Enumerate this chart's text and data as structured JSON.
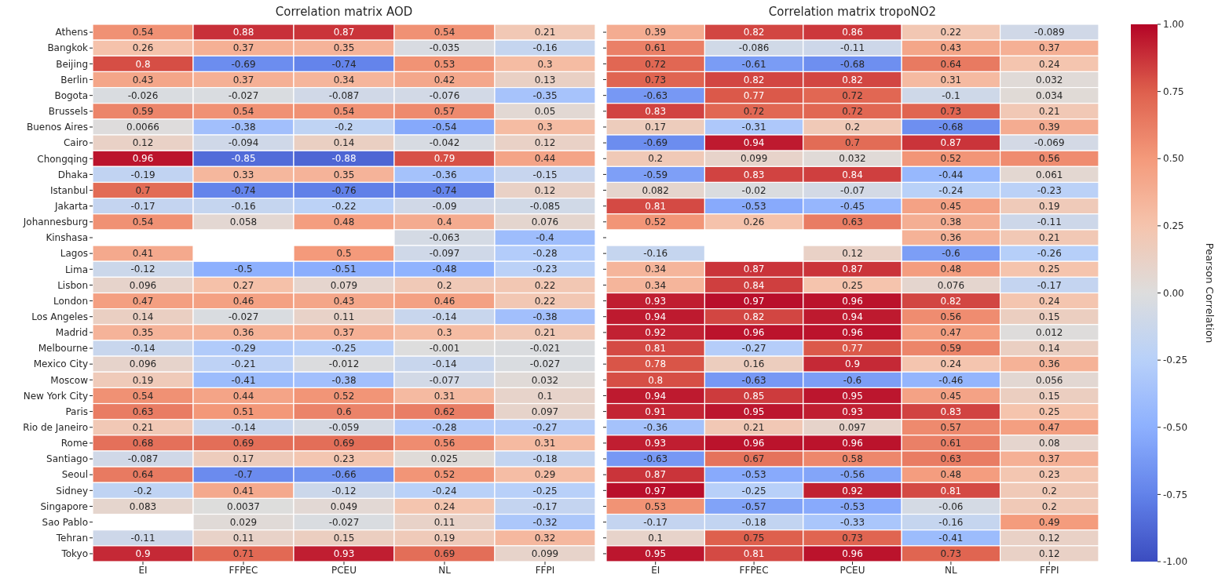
{
  "chart_data": [
    {
      "type": "heatmap",
      "title": "Correlation matrix AOD",
      "categories": [
        "EI",
        "FFPEC",
        "PCEU",
        "NL",
        "FFPI"
      ],
      "y_categories": [
        "Athens",
        "Bangkok",
        "Beijing",
        "Berlin",
        "Bogota",
        "Brussels",
        "Buenos Aires",
        "Cairo",
        "Chongqing",
        "Dhaka",
        "Istanbul",
        "Jakarta",
        "Johannesburg",
        "Kinshasa",
        "Lagos",
        "Lima",
        "Lisbon",
        "London",
        "Los Angeles",
        "Madrid",
        "Melbourne",
        "Mexico City",
        "Moscow",
        "New York City",
        "Paris",
        "Rio de Janeiro",
        "Rome",
        "Santiago",
        "Seoul",
        "Sidney",
        "Singapore",
        "Sao Pablo",
        "Tehran",
        "Tokyo"
      ],
      "cells": [
        [
          0.54,
          0.88,
          0.87,
          0.54,
          0.21
        ],
        [
          0.26,
          0.37,
          0.35,
          -0.035,
          -0.16
        ],
        [
          0.8,
          -0.69,
          -0.74,
          0.53,
          0.3
        ],
        [
          0.43,
          0.37,
          0.34,
          0.42,
          0.13
        ],
        [
          -0.026,
          -0.027,
          -0.087,
          -0.076,
          -0.35
        ],
        [
          0.59,
          0.54,
          0.54,
          0.57,
          0.05
        ],
        [
          0.0066,
          -0.38,
          -0.2,
          -0.54,
          0.3
        ],
        [
          0.12,
          -0.094,
          0.14,
          -0.042,
          0.12
        ],
        [
          0.96,
          -0.85,
          -0.88,
          0.79,
          0.44
        ],
        [
          -0.19,
          0.33,
          0.35,
          -0.36,
          -0.15
        ],
        [
          0.7,
          -0.74,
          -0.76,
          -0.74,
          0.12
        ],
        [
          -0.17,
          -0.16,
          -0.22,
          -0.09,
          -0.085
        ],
        [
          0.54,
          0.058,
          0.48,
          0.4,
          0.076
        ],
        [
          null,
          null,
          null,
          -0.063,
          -0.4
        ],
        [
          0.41,
          null,
          0.5,
          -0.097,
          -0.28
        ],
        [
          -0.12,
          -0.5,
          -0.51,
          -0.48,
          -0.23
        ],
        [
          0.096,
          0.27,
          0.079,
          0.2,
          0.22
        ],
        [
          0.47,
          0.46,
          0.43,
          0.46,
          0.22
        ],
        [
          0.14,
          -0.027,
          0.11,
          -0.14,
          -0.38
        ],
        [
          0.35,
          0.36,
          0.37,
          0.3,
          0.21
        ],
        [
          -0.14,
          -0.29,
          -0.25,
          -0.001,
          -0.021
        ],
        [
          0.096,
          -0.21,
          -0.012,
          -0.14,
          -0.027
        ],
        [
          0.19,
          -0.41,
          -0.38,
          -0.077,
          0.032
        ],
        [
          0.54,
          0.44,
          0.52,
          0.31,
          0.1
        ],
        [
          0.63,
          0.51,
          0.6,
          0.62,
          0.097
        ],
        [
          0.21,
          -0.14,
          -0.059,
          -0.28,
          -0.27
        ],
        [
          0.68,
          0.69,
          0.69,
          0.56,
          0.31
        ],
        [
          -0.087,
          0.17,
          0.23,
          0.025,
          -0.18
        ],
        [
          0.64,
          -0.7,
          -0.66,
          0.52,
          0.29
        ],
        [
          -0.2,
          0.41,
          -0.12,
          -0.24,
          -0.25
        ],
        [
          0.083,
          0.0037,
          0.049,
          0.24,
          -0.17
        ],
        [
          null,
          0.029,
          -0.027,
          0.11,
          -0.32
        ],
        [
          -0.11,
          0.11,
          0.15,
          0.19,
          0.32
        ],
        [
          0.9,
          0.71,
          0.93,
          0.69,
          0.099
        ]
      ],
      "data_labels": true
    },
    {
      "type": "heatmap",
      "title": "Correlation matrix tropoNO2",
      "categories": [
        "EI",
        "FFPEC",
        "PCEU",
        "NL",
        "FFPI"
      ],
      "y_categories": [
        null,
        null,
        null,
        null,
        null,
        null,
        null,
        null,
        null,
        null,
        null,
        null,
        null,
        null,
        null,
        null,
        null,
        null,
        null,
        null,
        null,
        null,
        null,
        null,
        null,
        null,
        null,
        null,
        null,
        null,
        null,
        null,
        null,
        null
      ],
      "cells": [
        [
          0.39,
          0.82,
          0.86,
          0.22,
          -0.089
        ],
        [
          0.61,
          -0.086,
          -0.11,
          0.43,
          0.37
        ],
        [
          0.72,
          -0.61,
          -0.68,
          0.64,
          0.24
        ],
        [
          0.73,
          0.82,
          0.82,
          0.31,
          0.032
        ],
        [
          -0.63,
          0.77,
          0.72,
          -0.1,
          0.034
        ],
        [
          0.83,
          0.72,
          0.72,
          0.73,
          0.21
        ],
        [
          0.17,
          -0.31,
          0.2,
          -0.68,
          0.39
        ],
        [
          -0.69,
          0.94,
          0.7,
          0.87,
          -0.069
        ],
        [
          0.2,
          0.099,
          0.032,
          0.52,
          0.56
        ],
        [
          -0.59,
          0.83,
          0.84,
          -0.44,
          0.061
        ],
        [
          0.082,
          -0.02,
          -0.07,
          -0.24,
          -0.23
        ],
        [
          0.81,
          -0.53,
          -0.45,
          0.45,
          0.19
        ],
        [
          0.52,
          0.26,
          0.63,
          0.38,
          -0.11
        ],
        [
          null,
          null,
          null,
          0.36,
          0.21
        ],
        [
          -0.16,
          null,
          0.12,
          -0.6,
          -0.26
        ],
        [
          0.34,
          0.87,
          0.87,
          0.48,
          0.25
        ],
        [
          0.34,
          0.84,
          0.25,
          0.076,
          -0.17
        ],
        [
          0.93,
          0.97,
          0.96,
          0.82,
          0.24
        ],
        [
          0.94,
          0.82,
          0.94,
          0.56,
          0.15
        ],
        [
          0.92,
          0.96,
          0.96,
          0.47,
          0.012
        ],
        [
          0.81,
          -0.27,
          0.77,
          0.59,
          0.14
        ],
        [
          0.78,
          0.16,
          0.9,
          0.24,
          0.36
        ],
        [
          0.8,
          -0.63,
          -0.6,
          -0.46,
          0.056
        ],
        [
          0.94,
          0.85,
          0.95,
          0.45,
          0.15
        ],
        [
          0.91,
          0.95,
          0.93,
          0.83,
          0.25
        ],
        [
          -0.36,
          0.21,
          0.097,
          0.57,
          0.47
        ],
        [
          0.93,
          0.96,
          0.96,
          0.61,
          0.08
        ],
        [
          -0.63,
          0.67,
          0.58,
          0.63,
          0.37
        ],
        [
          0.87,
          -0.53,
          -0.56,
          0.48,
          0.23
        ],
        [
          0.97,
          -0.25,
          0.92,
          0.81,
          0.2
        ],
        [
          0.53,
          -0.57,
          -0.53,
          -0.06,
          0.2
        ],
        [
          -0.17,
          -0.18,
          -0.33,
          -0.16,
          0.49
        ],
        [
          0.1,
          0.75,
          0.73,
          -0.41,
          0.12
        ],
        [
          0.95,
          0.81,
          0.96,
          0.73,
          0.12
        ]
      ],
      "data_labels": true,
      "tick_labels": "x",
      "clabel": "Pearson Correlation",
      "clim": [
        -1,
        1
      ],
      "cticks": [
        {
          "value": -1,
          "label": "-1.00"
        },
        {
          "value": -0.75,
          "label": "-0.75"
        },
        {
          "value": -0.5,
          "label": "-0.50"
        },
        {
          "value": -0.25,
          "label": "-0.25"
        },
        {
          "value": 0,
          "label": "0.00"
        },
        {
          "value": 0.25,
          "label": "0.25"
        },
        {
          "value": 0.5,
          "label": "0.50"
        },
        {
          "value": 0.75,
          "label": "0.75"
        },
        {
          "value": 1,
          "label": "1.00"
        }
      ]
    }
  ]
}
